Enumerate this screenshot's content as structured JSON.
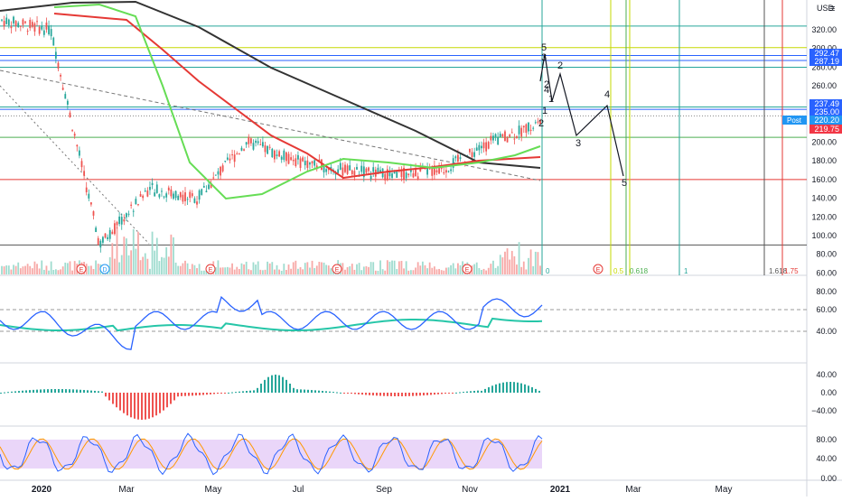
{
  "header": {
    "currency": "USD",
    "menu_label": "≡"
  },
  "price_axis": {
    "ticks": [
      "320.00",
      "300.00",
      "280.00",
      "260.00",
      "240.00",
      "220.00",
      "200.00",
      "180.00",
      "160.00",
      "140.00",
      "120.00",
      "100.00",
      "80.00",
      "60.00"
    ]
  },
  "price_labels": [
    {
      "text": "292.47",
      "color": "#2962ff"
    },
    {
      "text": "287.19",
      "color": "#2962ff"
    },
    {
      "text": "237.49",
      "color": "#2962ff"
    },
    {
      "text": "235.00",
      "color": "#2962ff"
    },
    {
      "text": "220.20",
      "color": "#2196f3",
      "prefix": "Post"
    },
    {
      "text": "219.75",
      "color": "#f23645"
    }
  ],
  "rsi_axis": {
    "ticks": [
      "80.00",
      "60.00",
      "40.00"
    ]
  },
  "macd_axis": {
    "ticks": [
      "40.00",
      "0.00",
      "−40.00"
    ]
  },
  "stoch_axis": {
    "ticks": [
      "80.00",
      "40.00",
      "0.00"
    ]
  },
  "time_axis": {
    "labels": [
      "2020",
      "Mar",
      "May",
      "Jul",
      "Sep",
      "Nov",
      "2021",
      "Mar",
      "May"
    ]
  },
  "fib_labels": [
    "0",
    "0.5",
    "0.618",
    "1",
    "1.618",
    "1.75"
  ],
  "wave_labels": [
    "5",
    "3",
    "2",
    "1",
    "4",
    "2",
    "1",
    "2",
    "3",
    "4",
    "5"
  ],
  "event_markers": [
    "E",
    "D",
    "E",
    "E",
    "E",
    "E"
  ],
  "colors": {
    "up": "#26a69a",
    "down": "#ef5350",
    "ma_black": "#333333",
    "ma_red": "#e53935",
    "ma_green": "#66dd55",
    "rsi": "#2962ff",
    "rsi_ma": "#26c6a8",
    "stoch_k": "#2962ff",
    "stoch_d": "#ff9800",
    "stoch_band": "#e1c4f7"
  },
  "chart_data": {
    "type": "candlestick",
    "symbol_currency": "USD",
    "x_range": [
      "2020-01",
      "2021-05"
    ],
    "y_range": [
      60,
      330
    ],
    "price_series": [
      {
        "date": "2020-01",
        "close": 330
      },
      {
        "date": "2020-02",
        "close": 320
      },
      {
        "date": "2020-03",
        "close": 90
      },
      {
        "date": "2020-04",
        "close": 150
      },
      {
        "date": "2020-05",
        "close": 140
      },
      {
        "date": "2020-06",
        "close": 200
      },
      {
        "date": "2020-07",
        "close": 180
      },
      {
        "date": "2020-08",
        "close": 170
      },
      {
        "date": "2020-09",
        "close": 165
      },
      {
        "date": "2020-10",
        "close": 170
      },
      {
        "date": "2020-11",
        "close": 200
      },
      {
        "date": "2020-12",
        "close": 220.2
      }
    ],
    "horizontal_levels": [
      292.47,
      287.19,
      237.49,
      235.0,
      219.75,
      300,
      280,
      205,
      160,
      90
    ],
    "projection": [
      {
        "label": "2",
        "value": 275
      },
      {
        "label": "3",
        "value": 205
      },
      {
        "label": "4",
        "value": 235
      },
      {
        "label": "5",
        "value": 155
      }
    ],
    "indicators": {
      "rsi": {
        "ylim": [
          0,
          100
        ],
        "levels": [
          60,
          40
        ]
      },
      "macd": {
        "ylim": [
          -60,
          60
        ]
      },
      "stochastic": {
        "ylim": [
          0,
          100
        ],
        "band": [
          20,
          80
        ]
      }
    }
  }
}
